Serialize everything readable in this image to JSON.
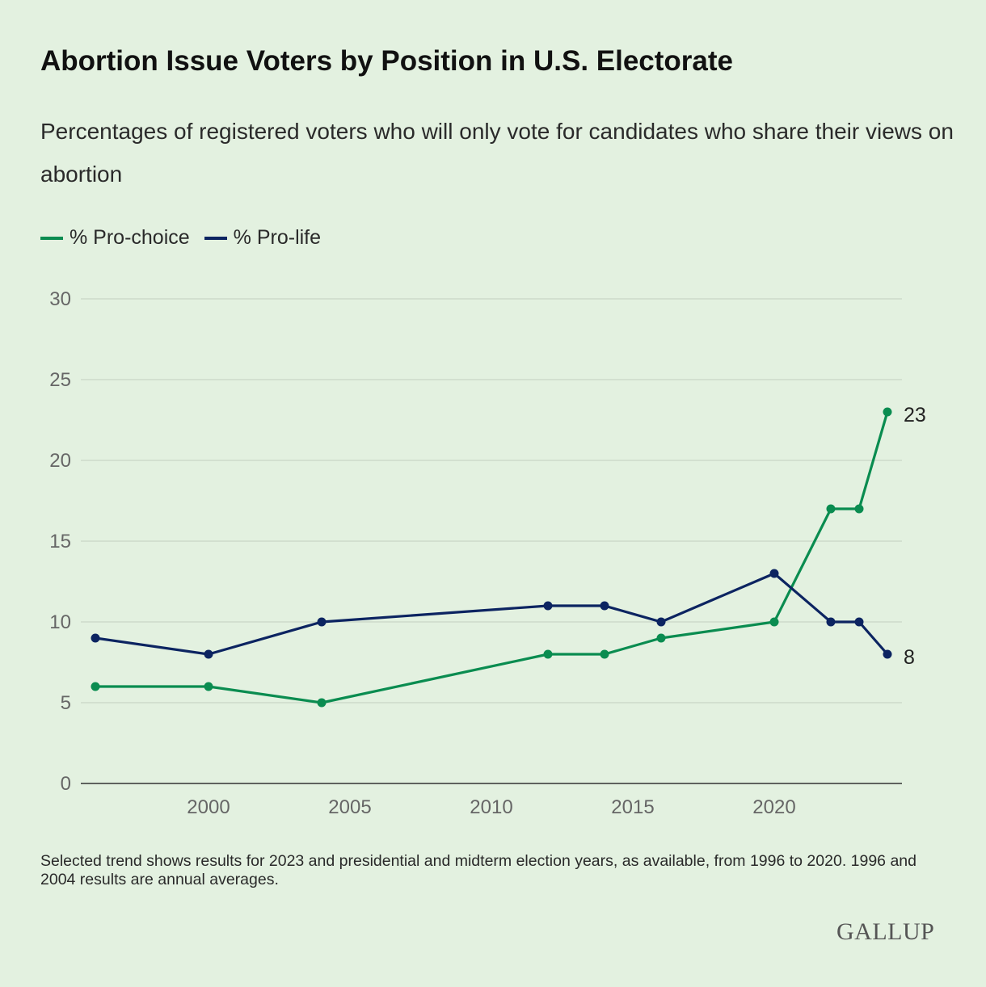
{
  "chart_data": {
    "type": "line",
    "title": "Abortion Issue Voters by Position in U.S. Electorate",
    "subtitle": "Percentages of registered voters who will only vote for candidates who share their views on abortion",
    "x": [
      1996,
      2000,
      2004,
      2012,
      2014,
      2016,
      2020,
      2022,
      2023,
      2024
    ],
    "series": [
      {
        "name": "% Pro-choice",
        "color": "#0a8c50",
        "values": [
          6,
          6,
          5,
          8,
          8,
          9,
          10,
          17,
          17,
          23
        ],
        "end_label": "23"
      },
      {
        "name": "% Pro-life",
        "color": "#0c2461",
        "values": [
          9,
          8,
          10,
          11,
          11,
          10,
          13,
          10,
          10,
          8
        ],
        "end_label": "8"
      }
    ],
    "xticks": [
      "2000",
      "2005",
      "2010",
      "2015",
      "2020"
    ],
    "yticks": [
      "0",
      "5",
      "10",
      "15",
      "20",
      "25",
      "30"
    ],
    "xlim": [
      1995.5,
      2025.5
    ],
    "ylim": [
      0,
      30
    ],
    "xlabel": "",
    "ylabel": "",
    "grid": true,
    "legend": "top-left"
  },
  "note": "Selected trend shows results for 2023 and presidential and midterm election years, as available, from 1996 to 2020. 1996 and 2004 results are annual averages.",
  "logo": "GALLUP"
}
